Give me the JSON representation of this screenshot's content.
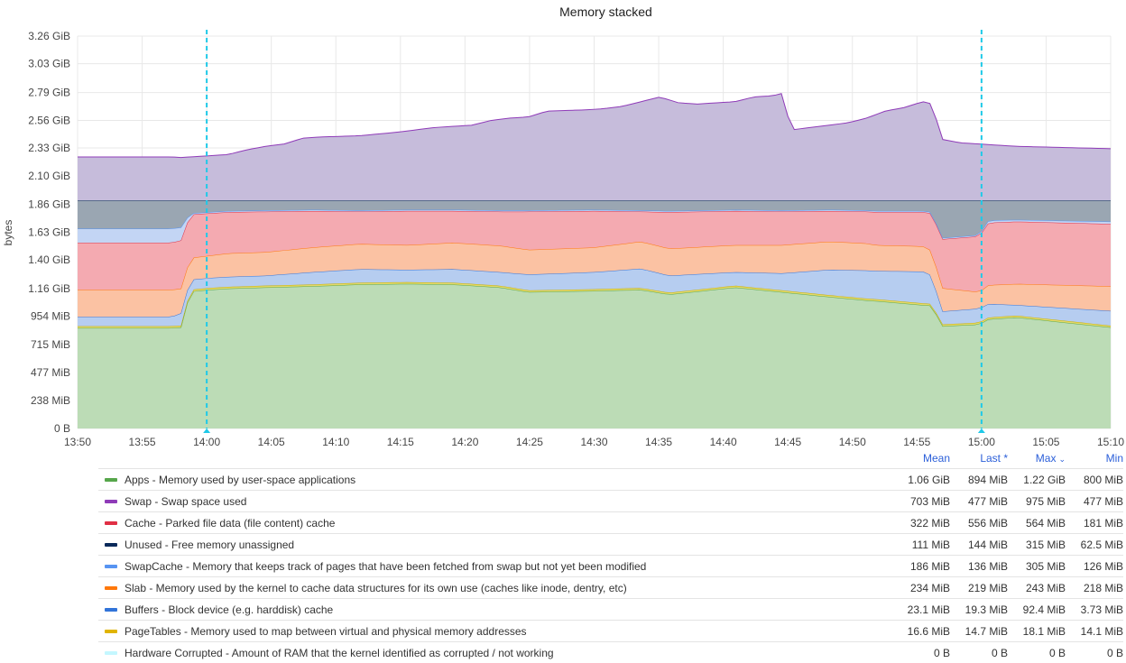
{
  "chart_data": {
    "type": "area",
    "stacked": true,
    "title": "Memory stacked",
    "ylabel": "bytes",
    "ylim": [
      "0 B",
      "3.26 GiB"
    ],
    "y_ticks": [
      "0 B",
      "238 MiB",
      "477 MiB",
      "715 MiB",
      "954 MiB",
      "1.16 GiB",
      "1.40 GiB",
      "1.63 GiB",
      "1.86 GiB",
      "2.10 GiB",
      "2.33 GiB",
      "2.56 GiB",
      "2.79 GiB",
      "3.03 GiB",
      "3.26 GiB"
    ],
    "x_ticks": [
      "13:50",
      "13:55",
      "14:00",
      "14:05",
      "14:10",
      "14:15",
      "14:20",
      "14:25",
      "14:30",
      "14:35",
      "14:40",
      "14:45",
      "14:50",
      "14:55",
      "15:00",
      "15:05",
      "15:10"
    ],
    "x_range_minutes": [
      0,
      80
    ],
    "markers_at": [
      "14:00",
      "15:00"
    ],
    "grid": true,
    "legend_placement": "bottom",
    "unit_note": "cumulative stack tops in MiB",
    "series": [
      {
        "name": "Apps - Memory used by user-space applications",
        "color": "#56a64b",
        "fill": "#bcdcb6",
        "points": [
          [
            0,
            855
          ],
          [
            10,
            855
          ],
          [
            11,
            860
          ],
          [
            12,
            1165
          ],
          [
            14,
            1180
          ],
          [
            16,
            1190
          ],
          [
            20,
            1200
          ],
          [
            25,
            1210
          ],
          [
            30,
            1225
          ],
          [
            35,
            1230
          ],
          [
            40,
            1225
          ],
          [
            45,
            1200
          ],
          [
            48,
            1160
          ],
          [
            55,
            1170
          ],
          [
            60,
            1180
          ],
          [
            63,
            1140
          ],
          [
            70,
            1200
          ],
          [
            75,
            1160
          ],
          [
            80,
            1120
          ],
          [
            84,
            1090
          ],
          [
            85,
            1085
          ],
          [
            90,
            1050
          ],
          [
            91,
            1045
          ],
          [
            92,
            870
          ],
          [
            96,
            885
          ],
          [
            97,
            930
          ],
          [
            100,
            945
          ],
          [
            110,
            860
          ]
        ]
      },
      {
        "name": "PageTables - Memory used to map between virtual and physical memory addresses",
        "color": "#c8b000",
        "fill": "#e4d96a",
        "points": [
          [
            0,
            870
          ],
          [
            10,
            870
          ],
          [
            11,
            875
          ],
          [
            12,
            1180
          ],
          [
            14,
            1195
          ],
          [
            16,
            1205
          ],
          [
            20,
            1215
          ],
          [
            25,
            1225
          ],
          [
            30,
            1240
          ],
          [
            35,
            1245
          ],
          [
            40,
            1240
          ],
          [
            45,
            1215
          ],
          [
            48,
            1175
          ],
          [
            55,
            1185
          ],
          [
            60,
            1195
          ],
          [
            63,
            1155
          ],
          [
            70,
            1215
          ],
          [
            75,
            1175
          ],
          [
            80,
            1135
          ],
          [
            84,
            1105
          ],
          [
            85,
            1100
          ],
          [
            90,
            1065
          ],
          [
            91,
            1060
          ],
          [
            92,
            885
          ],
          [
            96,
            900
          ],
          [
            97,
            945
          ],
          [
            100,
            960
          ],
          [
            110,
            875
          ]
        ]
      },
      {
        "name": "Buffers - Block device (e.g. harddisk) cache",
        "color": "#3274d9",
        "fill": "#b6cdf0",
        "points": [
          [
            0,
            950
          ],
          [
            10,
            950
          ],
          [
            11,
            980
          ],
          [
            12,
            1265
          ],
          [
            14,
            1280
          ],
          [
            16,
            1290
          ],
          [
            20,
            1300
          ],
          [
            25,
            1330
          ],
          [
            30,
            1355
          ],
          [
            35,
            1350
          ],
          [
            40,
            1355
          ],
          [
            45,
            1330
          ],
          [
            48,
            1310
          ],
          [
            55,
            1330
          ],
          [
            60,
            1360
          ],
          [
            63,
            1300
          ],
          [
            70,
            1330
          ],
          [
            75,
            1320
          ],
          [
            80,
            1350
          ],
          [
            84,
            1345
          ],
          [
            85,
            1340
          ],
          [
            90,
            1335
          ],
          [
            91,
            1300
          ],
          [
            92,
            995
          ],
          [
            96,
            1020
          ],
          [
            97,
            1060
          ],
          [
            100,
            1050
          ],
          [
            110,
            1000
          ]
        ]
      },
      {
        "name": "Slab - Memory used by the kernel to cache data structures for its own use (caches like inode, dentry, etc)",
        "color": "#ff780a",
        "fill": "#fbc2a3",
        "points": [
          [
            0,
            1180
          ],
          [
            10,
            1180
          ],
          [
            11,
            1190
          ],
          [
            12,
            1450
          ],
          [
            14,
            1470
          ],
          [
            16,
            1490
          ],
          [
            20,
            1500
          ],
          [
            25,
            1540
          ],
          [
            30,
            1570
          ],
          [
            35,
            1560
          ],
          [
            40,
            1580
          ],
          [
            45,
            1555
          ],
          [
            48,
            1520
          ],
          [
            55,
            1540
          ],
          [
            60,
            1590
          ],
          [
            63,
            1530
          ],
          [
            70,
            1560
          ],
          [
            75,
            1560
          ],
          [
            80,
            1590
          ],
          [
            84,
            1575
          ],
          [
            85,
            1560
          ],
          [
            90,
            1550
          ],
          [
            91,
            1510
          ],
          [
            92,
            1195
          ],
          [
            96,
            1160
          ],
          [
            97,
            1220
          ],
          [
            100,
            1230
          ],
          [
            110,
            1210
          ]
        ]
      },
      {
        "name": "Cache - Parked file data (file content) cache",
        "color": "#e02f44",
        "fill": "#f4aab1",
        "points": [
          [
            0,
            1580
          ],
          [
            10,
            1580
          ],
          [
            11,
            1600
          ],
          [
            12,
            1820
          ],
          [
            14,
            1830
          ],
          [
            16,
            1840
          ],
          [
            20,
            1845
          ],
          [
            25,
            1850
          ],
          [
            30,
            1845
          ],
          [
            35,
            1850
          ],
          [
            40,
            1850
          ],
          [
            45,
            1845
          ],
          [
            48,
            1845
          ],
          [
            55,
            1850
          ],
          [
            60,
            1845
          ],
          [
            63,
            1840
          ],
          [
            70,
            1850
          ],
          [
            75,
            1845
          ],
          [
            80,
            1850
          ],
          [
            84,
            1845
          ],
          [
            85,
            1840
          ],
          [
            90,
            1840
          ],
          [
            91,
            1830
          ],
          [
            92,
            1610
          ],
          [
            96,
            1635
          ],
          [
            97,
            1750
          ],
          [
            100,
            1760
          ],
          [
            110,
            1740
          ]
        ]
      },
      {
        "name": "SwapCache - Memory that keeps track of pages that have been fetched from swap but not yet been modified",
        "color": "#5794f2",
        "fill": "#c3d5f4",
        "points": [
          [
            0,
            1700
          ],
          [
            10,
            1700
          ],
          [
            11,
            1710
          ],
          [
            12,
            1830
          ],
          [
            14,
            1840
          ],
          [
            16,
            1850
          ],
          [
            20,
            1855
          ],
          [
            25,
            1860
          ],
          [
            30,
            1855
          ],
          [
            35,
            1860
          ],
          [
            40,
            1860
          ],
          [
            45,
            1855
          ],
          [
            48,
            1855
          ],
          [
            55,
            1860
          ],
          [
            60,
            1855
          ],
          [
            63,
            1850
          ],
          [
            70,
            1860
          ],
          [
            75,
            1855
          ],
          [
            80,
            1860
          ],
          [
            84,
            1855
          ],
          [
            85,
            1850
          ],
          [
            90,
            1850
          ],
          [
            91,
            1840
          ],
          [
            92,
            1620
          ],
          [
            96,
            1645
          ],
          [
            97,
            1770
          ],
          [
            100,
            1775
          ],
          [
            110,
            1760
          ]
        ]
      },
      {
        "name": "Unused - Free memory unassigned",
        "color": "#0a2a5a",
        "fill": "#9aa6b2",
        "points": [
          [
            0,
            1940
          ],
          [
            110,
            1940
          ]
        ]
      },
      {
        "name": "Swap - Swap space used",
        "color": "#8f3bb8",
        "fill": "#c6bcdb",
        "points": [
          [
            0,
            2310
          ],
          [
            10,
            2310
          ],
          [
            11,
            2305
          ],
          [
            12,
            2310
          ],
          [
            14,
            2320
          ],
          [
            16,
            2330
          ],
          [
            18,
            2370
          ],
          [
            20,
            2400
          ],
          [
            22,
            2420
          ],
          [
            24,
            2470
          ],
          [
            26,
            2480
          ],
          [
            30,
            2490
          ],
          [
            34,
            2520
          ],
          [
            38,
            2560
          ],
          [
            42,
            2580
          ],
          [
            44,
            2620
          ],
          [
            46,
            2640
          ],
          [
            48,
            2650
          ],
          [
            50,
            2700
          ],
          [
            54,
            2710
          ],
          [
            56,
            2720
          ],
          [
            58,
            2740
          ],
          [
            60,
            2780
          ],
          [
            62,
            2820
          ],
          [
            64,
            2770
          ],
          [
            66,
            2760
          ],
          [
            70,
            2780
          ],
          [
            72,
            2820
          ],
          [
            74,
            2830
          ],
          [
            75,
            2850
          ],
          [
            76,
            2540
          ],
          [
            78,
            2560
          ],
          [
            82,
            2600
          ],
          [
            84,
            2640
          ],
          [
            86,
            2700
          ],
          [
            88,
            2730
          ],
          [
            90,
            2780
          ],
          [
            91,
            2760
          ],
          [
            92,
            2460
          ],
          [
            94,
            2430
          ],
          [
            100,
            2400
          ],
          [
            110,
            2380
          ]
        ]
      },
      {
        "name": "Hardware Corrupted - Amount of RAM that the kernel identified as corrupted / not working",
        "color": "#b8f5ff",
        "fill": "#b8f5ff",
        "points": []
      }
    ]
  },
  "legend": {
    "headers": {
      "mean": "Mean",
      "last": "Last *",
      "max": "Max",
      "min": "Min"
    },
    "rows": [
      {
        "name": "Apps - Memory used by user-space applications",
        "color": "#56a64b",
        "mean": "1.06 GiB",
        "last": "894 MiB",
        "max": "1.22 GiB",
        "min": "800 MiB"
      },
      {
        "name": "Swap - Swap space used",
        "color": "#8f3bb8",
        "mean": "703 MiB",
        "last": "477 MiB",
        "max": "975 MiB",
        "min": "477 MiB"
      },
      {
        "name": "Cache - Parked file data (file content) cache",
        "color": "#e02f44",
        "mean": "322 MiB",
        "last": "556 MiB",
        "max": "564 MiB",
        "min": "181 MiB"
      },
      {
        "name": "Unused - Free memory unassigned",
        "color": "#0a2a5a",
        "mean": "111 MiB",
        "last": "144 MiB",
        "max": "315 MiB",
        "min": "62.5 MiB"
      },
      {
        "name": "SwapCache - Memory that keeps track of pages that have been fetched from swap but not yet been modified",
        "color": "#5794f2",
        "mean": "186 MiB",
        "last": "136 MiB",
        "max": "305 MiB",
        "min": "126 MiB"
      },
      {
        "name": "Slab - Memory used by the kernel to cache data structures for its own use (caches like inode, dentry, etc)",
        "color": "#ff780a",
        "mean": "234 MiB",
        "last": "219 MiB",
        "max": "243 MiB",
        "min": "218 MiB"
      },
      {
        "name": "Buffers - Block device (e.g. harddisk) cache",
        "color": "#3274d9",
        "mean": "23.1 MiB",
        "last": "19.3 MiB",
        "max": "92.4 MiB",
        "min": "3.73 MiB"
      },
      {
        "name": "PageTables - Memory used to map between virtual and physical memory addresses",
        "color": "#e0b400",
        "mean": "16.6 MiB",
        "last": "14.7 MiB",
        "max": "18.1 MiB",
        "min": "14.1 MiB"
      },
      {
        "name": "Hardware Corrupted - Amount of RAM that the kernel identified as corrupted / not working",
        "color": "#c4f7ff",
        "mean": "0 B",
        "last": "0 B",
        "max": "0 B",
        "min": "0 B"
      }
    ]
  }
}
